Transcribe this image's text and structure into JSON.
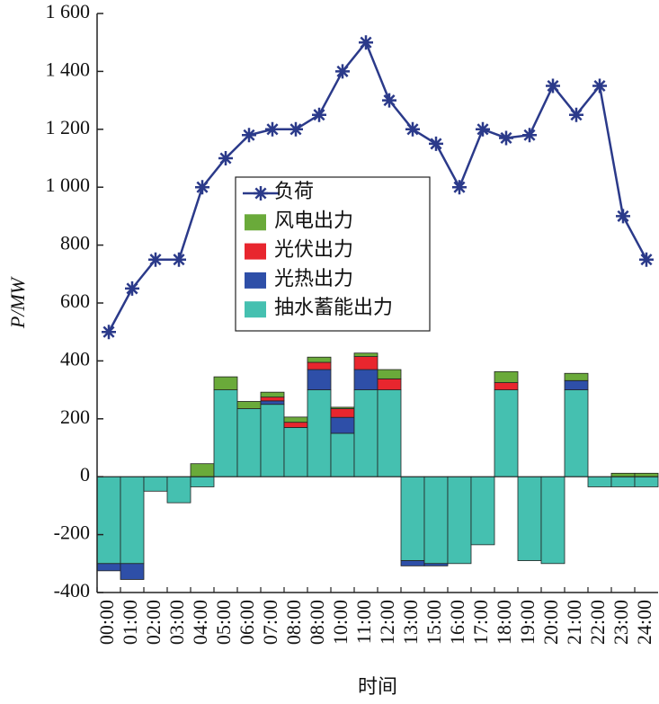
{
  "chart_data": {
    "type": "bar",
    "stacked": true,
    "ylabel": "P/MW",
    "xlabel": "时间",
    "categories": [
      "00:00",
      "01:00",
      "02:00",
      "03:00",
      "04:00",
      "05:00",
      "06:00",
      "07:00",
      "08:00",
      "08:00",
      "10:00",
      "11:00",
      "12:00",
      "13:00",
      "15:00",
      "16:00",
      "17:00",
      "18:00",
      "19:00",
      "20:00",
      "21:00",
      "22:00",
      "23:00",
      "24:00"
    ],
    "ylim": [
      -400,
      1600
    ],
    "yticks": [
      -400,
      -200,
      0,
      200,
      400,
      600,
      800,
      {
        "value": 1000,
        "label": "1 000"
      },
      {
        "value": 1200,
        "label": "1 200"
      },
      {
        "value": 1400,
        "label": "1 400"
      },
      {
        "value": 1600,
        "label": "1 600"
      }
    ],
    "series": [
      {
        "name": "负荷",
        "type": "line",
        "color": "#2b3a8a",
        "values": [
          500,
          650,
          750,
          750,
          1000,
          1100,
          1180,
          1200,
          1200,
          1250,
          1400,
          1500,
          1300,
          1200,
          1150,
          1000,
          1200,
          1170,
          1180,
          1350,
          1250,
          1350,
          900,
          750
        ]
      },
      {
        "name": "风电出力",
        "color": "#6aaa3a",
        "values": [
          0,
          0,
          0,
          0,
          45,
          45,
          25,
          17,
          18,
          18,
          5,
          12,
          32,
          0,
          0,
          0,
          0,
          38,
          0,
          0,
          25,
          0,
          12,
          12
        ]
      },
      {
        "name": "光伏出力",
        "color": "#e8262e",
        "values": [
          0,
          0,
          0,
          0,
          0,
          0,
          0,
          13,
          18,
          25,
          30,
          45,
          38,
          0,
          0,
          0,
          0,
          25,
          0,
          0,
          0,
          0,
          0,
          0
        ]
      },
      {
        "name": "光热出力",
        "color": "#2e4fa8",
        "values": [
          -25,
          -55,
          0,
          0,
          0,
          0,
          0,
          12,
          0,
          70,
          55,
          70,
          0,
          -18,
          -8,
          0,
          0,
          0,
          0,
          0,
          32,
          0,
          0,
          0
        ]
      },
      {
        "name": "抽水蓄能出力",
        "color": "#45c0b0",
        "values": [
          -300,
          -300,
          -50,
          -90,
          -35,
          300,
          235,
          250,
          170,
          300,
          150,
          300,
          300,
          -290,
          -300,
          -300,
          -235,
          300,
          -290,
          -300,
          300,
          -35,
          -35,
          -35
        ]
      }
    ]
  }
}
